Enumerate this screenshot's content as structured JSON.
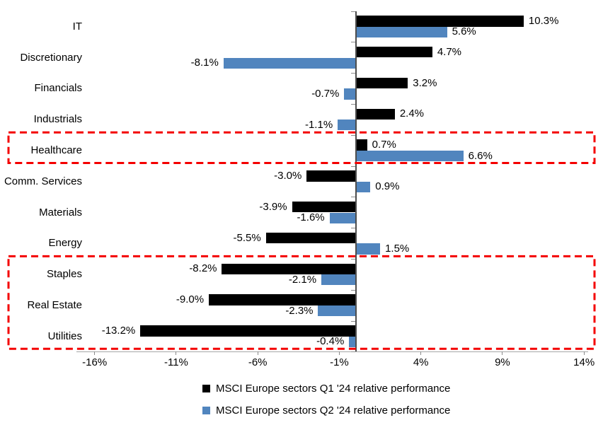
{
  "chart_data": {
    "type": "bar",
    "orientation": "horizontal",
    "title": "",
    "categories": [
      "IT",
      "Discretionary",
      "Financials",
      "Industrials",
      "Healthcare",
      "Comm. Services",
      "Materials",
      "Energy",
      "Staples",
      "Real Estate",
      "Utilities"
    ],
    "series": [
      {
        "name": "MSCI Europe sectors Q1 '24 relative performance",
        "color": "#000000",
        "values": [
          10.3,
          4.7,
          3.2,
          2.4,
          0.7,
          -3.0,
          -3.9,
          -5.5,
          -8.2,
          -9.0,
          -13.2
        ],
        "labels": [
          "10.3%",
          "4.7%",
          "3.2%",
          "2.4%",
          "0.7%",
          "-3.0%",
          "-3.9%",
          "-5.5%",
          "-8.2%",
          "-9.0%",
          "-13.2%"
        ]
      },
      {
        "name": "MSCI Europe sectors Q2 '24 relative performance",
        "color": "#5185BE",
        "values": [
          5.6,
          -8.1,
          -0.7,
          -1.1,
          6.6,
          0.9,
          -1.6,
          1.5,
          -2.1,
          -2.3,
          -0.4
        ],
        "labels": [
          "5.6%",
          "-8.1%",
          "-0.7%",
          "-1.1%",
          "6.6%",
          "0.9%",
          "-1.6%",
          "1.5%",
          "-2.1%",
          "-2.3%",
          "-0.4%"
        ]
      }
    ],
    "x_tick_labels": [
      "-16%",
      "-11%",
      "-6%",
      "-1%",
      "4%",
      "9%",
      "14%"
    ],
    "x_tick_values": [
      -16,
      -11,
      -6,
      -1,
      4,
      9,
      14
    ],
    "xlim": [
      -17,
      14.2
    ],
    "grid": false,
    "legend_position": "bottom",
    "axis_color": "#a6a6a6",
    "highlight_color": "#F40000",
    "highlight_boxes": [
      {
        "name": "healthcare-highlight",
        "categories": [
          "Healthcare"
        ]
      },
      {
        "name": "defensives-highlight",
        "categories": [
          "Staples",
          "Real Estate",
          "Utilities"
        ]
      }
    ]
  }
}
